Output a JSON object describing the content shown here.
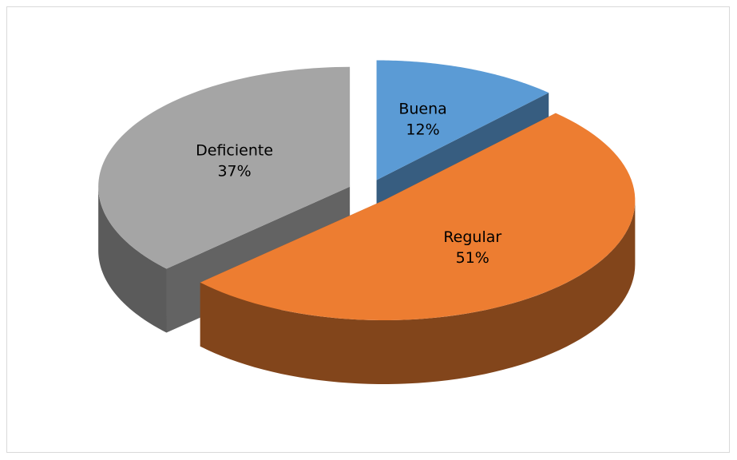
{
  "chart_data": {
    "type": "pie3d",
    "categories": [
      "Buena",
      "Regular",
      "Deficiente"
    ],
    "values": [
      12,
      51,
      37
    ],
    "value_labels": [
      "12%",
      "51%",
      "37%"
    ],
    "colors": [
      "#5b9bd5",
      "#ed7d31",
      "#a5a5a5"
    ]
  }
}
